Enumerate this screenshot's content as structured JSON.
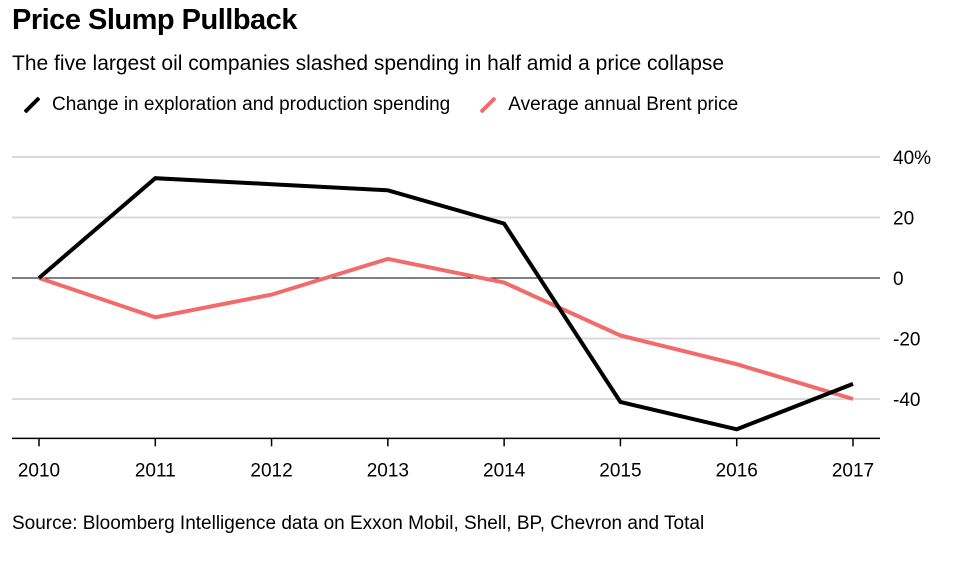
{
  "title": "Price Slump Pullback",
  "subtitle": "The five largest oil companies slashed spending in half amid a price collapse",
  "source": "Source: Bloomberg Intelligence data on Exxon Mobil, Shell, BP, Chevron and Total",
  "chart_data": {
    "type": "line",
    "title": "Price Slump Pullback",
    "subtitle": "The five largest oil companies slashed spending in half amid a price collapse",
    "x": [
      "2010",
      "2011",
      "2012",
      "2013",
      "2014",
      "2015",
      "2016",
      "2017"
    ],
    "y_ticks": [
      40,
      20,
      0,
      -20,
      -40
    ],
    "y_tick_labels": [
      "40%",
      "20",
      "0",
      "-20",
      "-40"
    ],
    "ylim": [
      -53,
      40
    ],
    "grid": true,
    "legend_position": "top-left",
    "series": [
      {
        "name": "Change in exploration and production spending",
        "color": "#000000",
        "values": [
          0,
          33,
          31,
          29,
          18,
          -41,
          -50,
          -35
        ]
      },
      {
        "name": "Average annual Brent price",
        "color": "#f26b6b",
        "values": [
          0,
          -13,
          -5.5,
          6.3,
          -1.5,
          -19,
          -28.5,
          -40
        ]
      }
    ]
  }
}
